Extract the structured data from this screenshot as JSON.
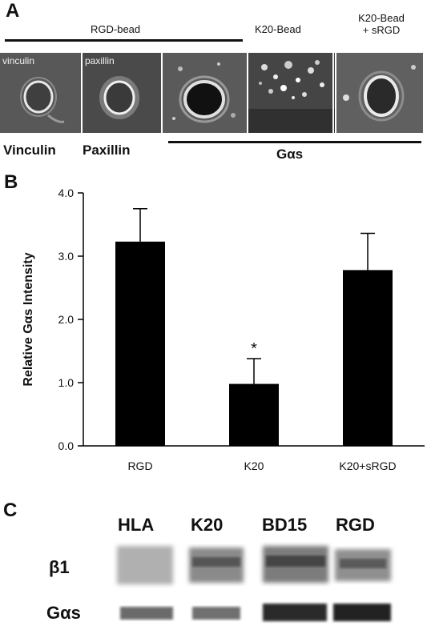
{
  "panelA": {
    "letter": "A",
    "header_rgd": "RGD-bead",
    "header_k20": "K20-Bead",
    "header_k20sRGD": "K20-Bead\n+ sRGD",
    "img_vinculin_label": "vinculin",
    "img_paxillin_label": "paxillin",
    "caption_vinculin": "Vinculin",
    "caption_paxillin": "Paxillin",
    "caption_gas": "Gαs"
  },
  "panelB": {
    "letter": "B"
  },
  "panelC": {
    "letter": "C",
    "lanes": [
      "HLA",
      "K20",
      "BD15",
      "RGD"
    ],
    "rows": [
      "β1",
      "Gαs"
    ]
  },
  "chart_data": {
    "type": "bar",
    "categories": [
      "RGD",
      "K20",
      "K20+sRGD"
    ],
    "values": [
      3.23,
      0.98,
      2.78
    ],
    "errors": [
      0.52,
      0.4,
      0.58
    ],
    "significance": [
      "",
      "*",
      ""
    ],
    "ylabel": "Relative Gαs Intensity",
    "ylim": [
      0,
      4
    ],
    "yticks": [
      "0.0",
      "1.0",
      "2.0",
      "3.0",
      "4.0"
    ],
    "bar_color": "#000000",
    "grid": false
  }
}
